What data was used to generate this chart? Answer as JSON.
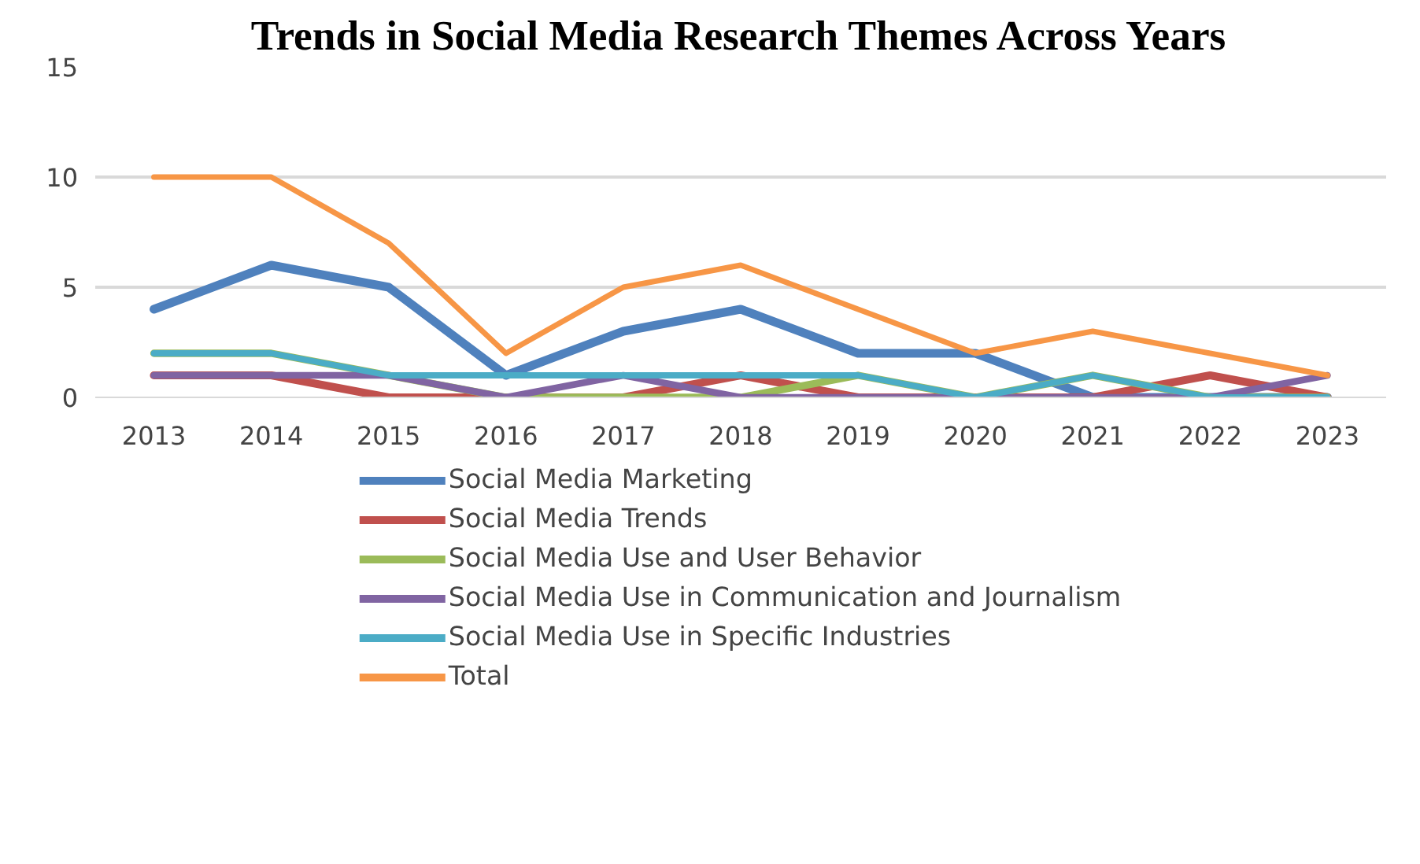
{
  "chart_data": {
    "type": "line",
    "title": "Trends in Social Media Research Themes Across Years",
    "categories": [
      "2013",
      "2014",
      "2015",
      "2016",
      "2017",
      "2018",
      "2019",
      "2020",
      "2021",
      "2022",
      "2023"
    ],
    "series": [
      {
        "name": "Social Media Marketing",
        "color": "#4f81bd",
        "values": [
          4,
          6,
          5,
          1,
          3,
          4,
          2,
          2,
          0,
          0,
          0
        ]
      },
      {
        "name": "Social Media Trends",
        "color": "#c0504d",
        "values": [
          1,
          1,
          0,
          0,
          0,
          1,
          0,
          0,
          0,
          1,
          0
        ]
      },
      {
        "name": "Social Media Use and User Behavior",
        "color": "#9bbb59",
        "values": [
          2,
          2,
          1,
          0,
          0,
          0,
          1,
          0,
          1,
          0,
          0
        ]
      },
      {
        "name": "Social Media Use in Communication and Journalism",
        "color": "#8064a2",
        "values": [
          1,
          1,
          1,
          0,
          1,
          0,
          0,
          0,
          0,
          0,
          1
        ]
      },
      {
        "name": "Social Media Use in Specific Industries",
        "color": "#4bacc6",
        "values": [
          2,
          2,
          1,
          1,
          1,
          1,
          1,
          0,
          1,
          0,
          0
        ]
      },
      {
        "name": "Total",
        "color": "#f79646",
        "values": [
          10,
          10,
          7,
          2,
          5,
          6,
          4,
          2,
          3,
          2,
          1
        ]
      }
    ],
    "ylim": [
      0,
      15
    ],
    "yticks": [
      0,
      5,
      10,
      15
    ],
    "grid": "y",
    "legend": "bottom",
    "marker": "none",
    "line_style": "solid"
  }
}
